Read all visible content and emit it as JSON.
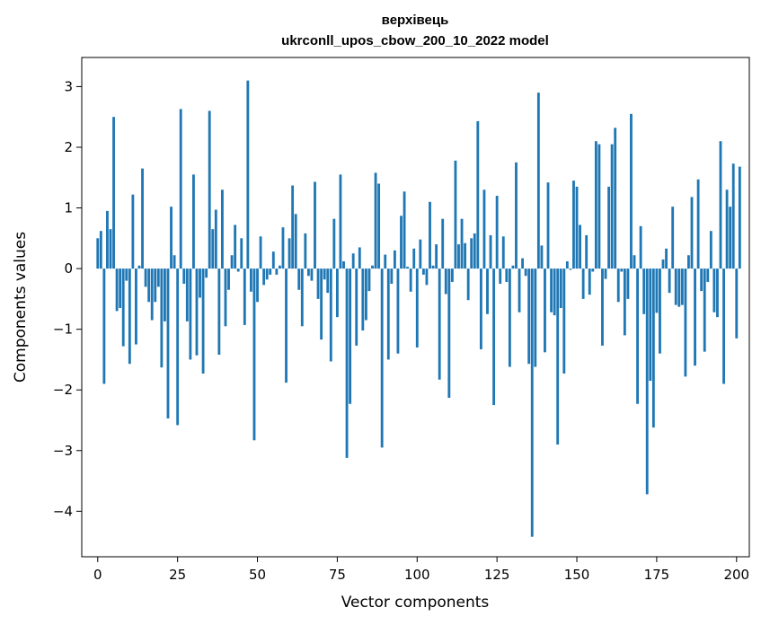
{
  "chart_data": {
    "type": "bar",
    "title": "верхівець",
    "subtitle": "ukrconll_upos_cbow_200_10_2022 model",
    "xlabel": "Vector components",
    "ylabel": "Components values",
    "xlim": [
      -5,
      204
    ],
    "ylim": [
      -4.75,
      3.48
    ],
    "xticks": [
      0,
      25,
      50,
      75,
      100,
      125,
      150,
      175,
      200
    ],
    "yticks": [
      -4,
      -3,
      -2,
      -1,
      0,
      1,
      2,
      3
    ],
    "bar_color": "#1f77b4",
    "grid": false,
    "values": [
      0.5,
      0.62,
      -1.9,
      0.95,
      0.65,
      2.5,
      -0.7,
      -0.65,
      -1.28,
      -0.2,
      -1.57,
      1.22,
      -1.25,
      0.05,
      1.65,
      -0.3,
      -0.55,
      -0.85,
      -0.55,
      -0.3,
      -1.63,
      -0.87,
      -2.47,
      1.02,
      0.22,
      -2.58,
      2.63,
      -0.25,
      -0.87,
      -1.5,
      1.55,
      -1.43,
      -0.48,
      -1.73,
      -0.15,
      2.6,
      0.65,
      0.97,
      -1.42,
      1.3,
      -0.95,
      -0.35,
      0.22,
      0.72,
      -0.05,
      0.5,
      -0.93,
      3.1,
      -0.38,
      -2.83,
      -0.55,
      0.53,
      -0.27,
      -0.18,
      -0.1,
      0.28,
      -0.1,
      0.05,
      0.68,
      -1.88,
      0.5,
      1.37,
      0.9,
      -0.35,
      -0.95,
      0.58,
      -0.12,
      -0.2,
      1.43,
      -0.5,
      -1.17,
      -0.18,
      -0.4,
      -1.53,
      0.82,
      -0.8,
      1.55,
      0.12,
      -3.12,
      -2.23,
      0.25,
      -1.27,
      0.35,
      -1.02,
      -0.85,
      -0.37,
      0.05,
      1.58,
      1.4,
      -2.95,
      0.23,
      -1.5,
      -0.25,
      0.3,
      -1.4,
      0.87,
      1.27,
      0.03,
      -0.38,
      0.33,
      -1.3,
      0.48,
      -0.1,
      -0.27,
      1.1,
      0.05,
      0.4,
      -1.83,
      0.82,
      -0.42,
      -2.13,
      -0.22,
      1.78,
      0.4,
      0.82,
      0.42,
      -0.52,
      0.5,
      0.58,
      2.43,
      -1.33,
      1.3,
      -0.75,
      0.55,
      -2.25,
      1.2,
      -0.25,
      0.53,
      -0.22,
      -1.62,
      0.05,
      1.75,
      -0.72,
      0.17,
      -0.12,
      -1.57,
      -4.42,
      -1.62,
      2.9,
      0.38,
      -1.38,
      1.42,
      -0.72,
      -0.77,
      -2.9,
      -0.65,
      -1.73,
      0.12,
      -0.02,
      1.45,
      1.35,
      0.72,
      -0.5,
      0.55,
      -0.43,
      -0.05,
      2.1,
      2.05,
      -1.27,
      -0.17,
      1.35,
      2.05,
      2.32,
      -0.55,
      -0.05,
      -1.1,
      -0.5,
      2.55,
      0.22,
      -2.23,
      0.7,
      -0.75,
      -3.72,
      -1.85,
      -2.62,
      -0.73,
      -1.4,
      0.15,
      0.33,
      -0.4,
      1.02,
      -0.6,
      -0.63,
      -0.6,
      -1.78,
      0.22,
      1.18,
      -1.6,
      1.47,
      -0.37,
      -1.37,
      -0.22,
      0.62,
      -0.72,
      -0.8,
      2.1,
      -1.9,
      1.3,
      1.02,
      1.73,
      -1.15,
      1.68
    ]
  }
}
